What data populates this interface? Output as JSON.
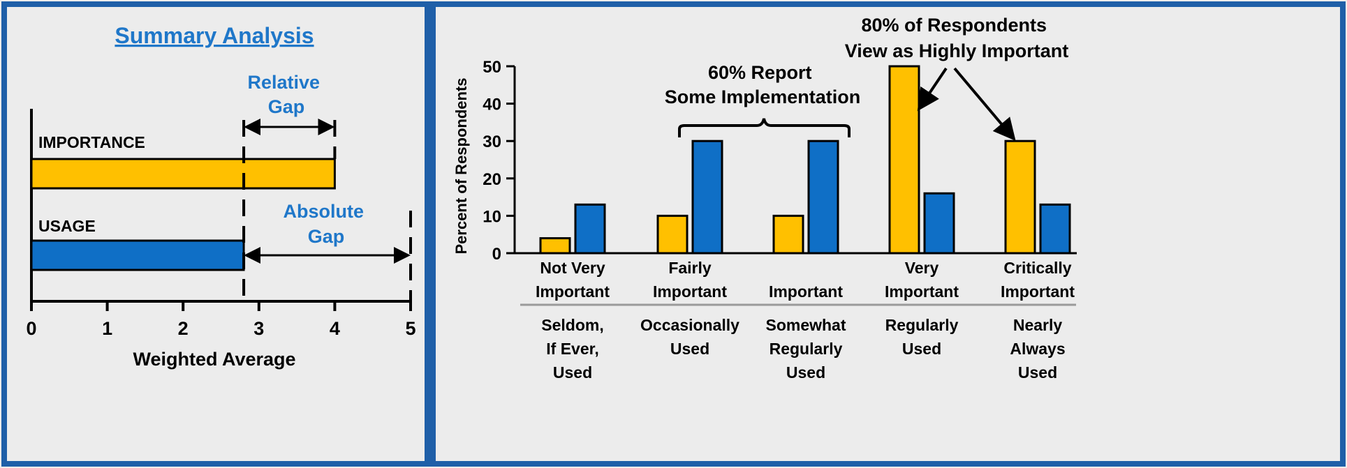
{
  "colors": {
    "panel_border": "#1f5fa8",
    "background": "#ececec",
    "importance": "#ffc000",
    "usage": "#0f6fc6",
    "annotation_blue": "#1f77c9",
    "ink": "#000000",
    "separator": "#9a9a9a"
  },
  "chart_data": [
    {
      "type": "bar",
      "orientation": "horizontal",
      "title": "Summary Analysis",
      "xlabel": "Weighted Average",
      "xlim": [
        0,
        5
      ],
      "ticks": [
        "0",
        "1",
        "2",
        "3",
        "4",
        "5"
      ],
      "categories": [
        "IMPORTANCE",
        "USAGE"
      ],
      "values": [
        4.0,
        2.8
      ],
      "annotations": {
        "relative_gap": [
          "Relative",
          "Gap"
        ],
        "absolute_gap": [
          "Absolute",
          "Gap"
        ]
      }
    },
    {
      "type": "bar",
      "ylabel": "Percent of Respondents",
      "ylim": [
        0,
        50
      ],
      "yticks": [
        "0",
        "10",
        "20",
        "30",
        "40",
        "50"
      ],
      "categories": [
        [
          "Not Very",
          "Important"
        ],
        [
          "Fairly",
          "Important"
        ],
        [
          "Important"
        ],
        [
          "Very",
          "Important"
        ],
        [
          "Critically",
          "Important"
        ]
      ],
      "usage_categories": [
        [
          "Seldom,",
          "If Ever,",
          "Used"
        ],
        [
          "Occasionally",
          "Used"
        ],
        [
          "Somewhat",
          "Regularly",
          "Used"
        ],
        [
          "Regularly",
          "Used"
        ],
        [
          "Nearly",
          "Always",
          "Used"
        ]
      ],
      "series": [
        {
          "values": [
            4,
            10,
            10,
            50,
            30
          ]
        },
        {
          "values": [
            13,
            30,
            30,
            16,
            13
          ]
        }
      ],
      "annotations": {
        "implementation": [
          "60% Report",
          "Some Implementation"
        ],
        "important": [
          "80% of Respondents",
          "View as Highly Important"
        ]
      }
    }
  ]
}
